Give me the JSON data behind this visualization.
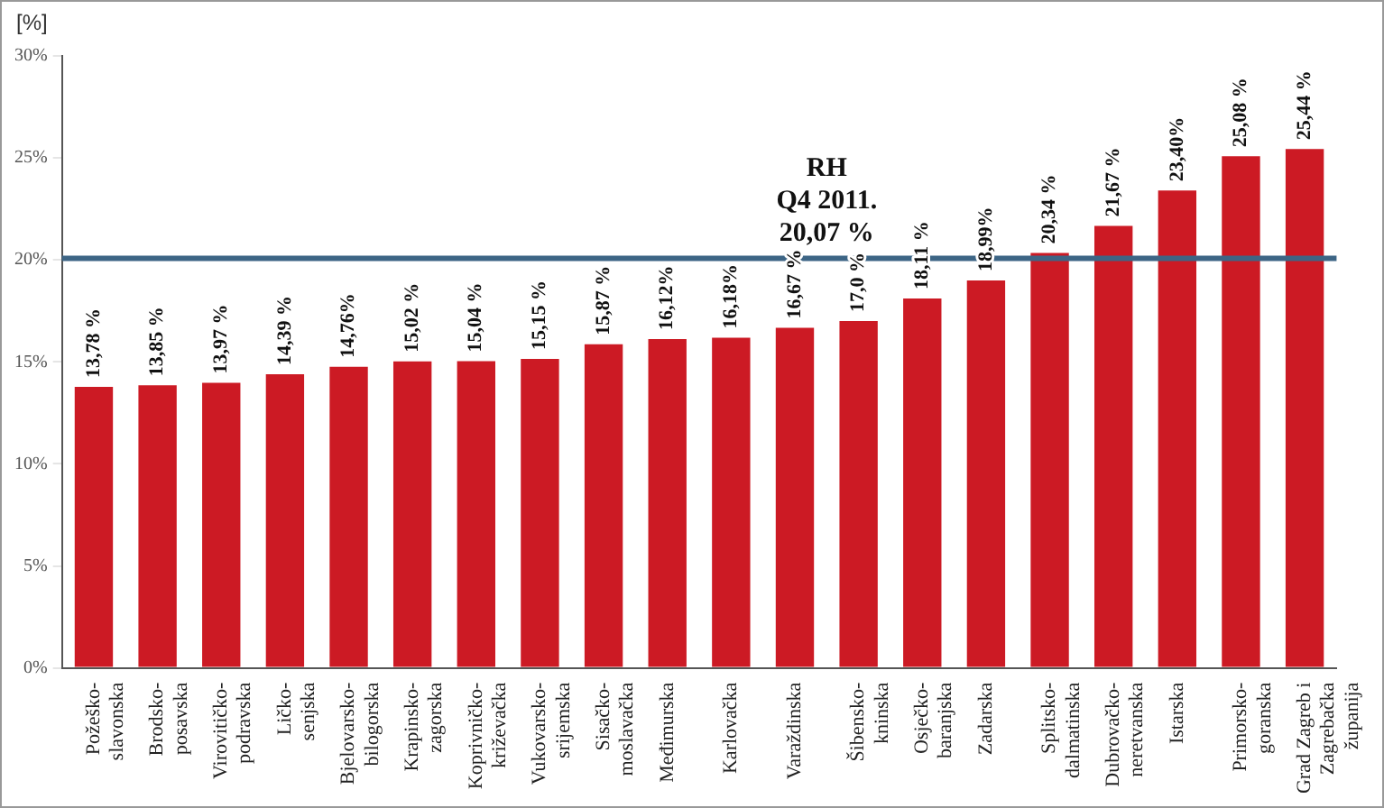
{
  "chart_data": {
    "type": "bar",
    "ylabel": "[%]",
    "categories": [
      "Požeško-slavonska",
      "Brodsko-posavska",
      "Virovitičko-podravska",
      "Ličko-senjska",
      "Bjelovarsko-bilogorska",
      "Krapinsko-zagorska",
      "Koprivničko-križevačka",
      "Vukovarsko-srijemska",
      "Sisačko-moslavačka",
      "Međimurska",
      "Karlovačka",
      "Varaždinska",
      "Šibensko-kninska",
      "Osječko-baranjska",
      "Zadarska",
      "Splitsko-dalmatinska",
      "Dubrovačko-neretvanska",
      "Istarska",
      "Primorsko-goranska",
      "Grad Zagreb i Zagrebačka županija"
    ],
    "values": [
      13.78,
      13.85,
      13.97,
      14.39,
      14.76,
      15.02,
      15.04,
      15.15,
      15.87,
      16.12,
      16.18,
      16.67,
      17.0,
      18.11,
      18.99,
      20.34,
      21.67,
      23.4,
      25.08,
      25.44
    ],
    "value_labels": [
      "13,78 %",
      "13,85 %",
      "13,97 %",
      "14,39 %",
      "14,76%",
      "15,02 %",
      "15,04 %",
      "15,15 %",
      "15,87 %",
      "16,12%",
      "16,18%",
      "16,67 %",
      "17,0 %",
      "18,11 %",
      "18,99%",
      "20,34 %",
      "21,67 %",
      "23,40%",
      "25,08 %",
      "25,44 %"
    ],
    "color": "#cc1a24",
    "ylim": [
      0,
      30
    ],
    "yticks": [
      {
        "value": 0,
        "label": "0%"
      },
      {
        "value": 5,
        "label": "5%"
      },
      {
        "value": 10,
        "label": "10%"
      },
      {
        "value": 15,
        "label": "15%"
      },
      {
        "value": 20,
        "label": "20%"
      },
      {
        "value": 25,
        "label": "25%"
      },
      {
        "value": 30,
        "label": "30%"
      }
    ],
    "ref_lines": [
      {
        "axis": "y",
        "value": 20.07,
        "label": "RH\nQ4 2011.\n20,07 %",
        "color": "#3d6585"
      }
    ],
    "grid": false,
    "legend": false
  }
}
